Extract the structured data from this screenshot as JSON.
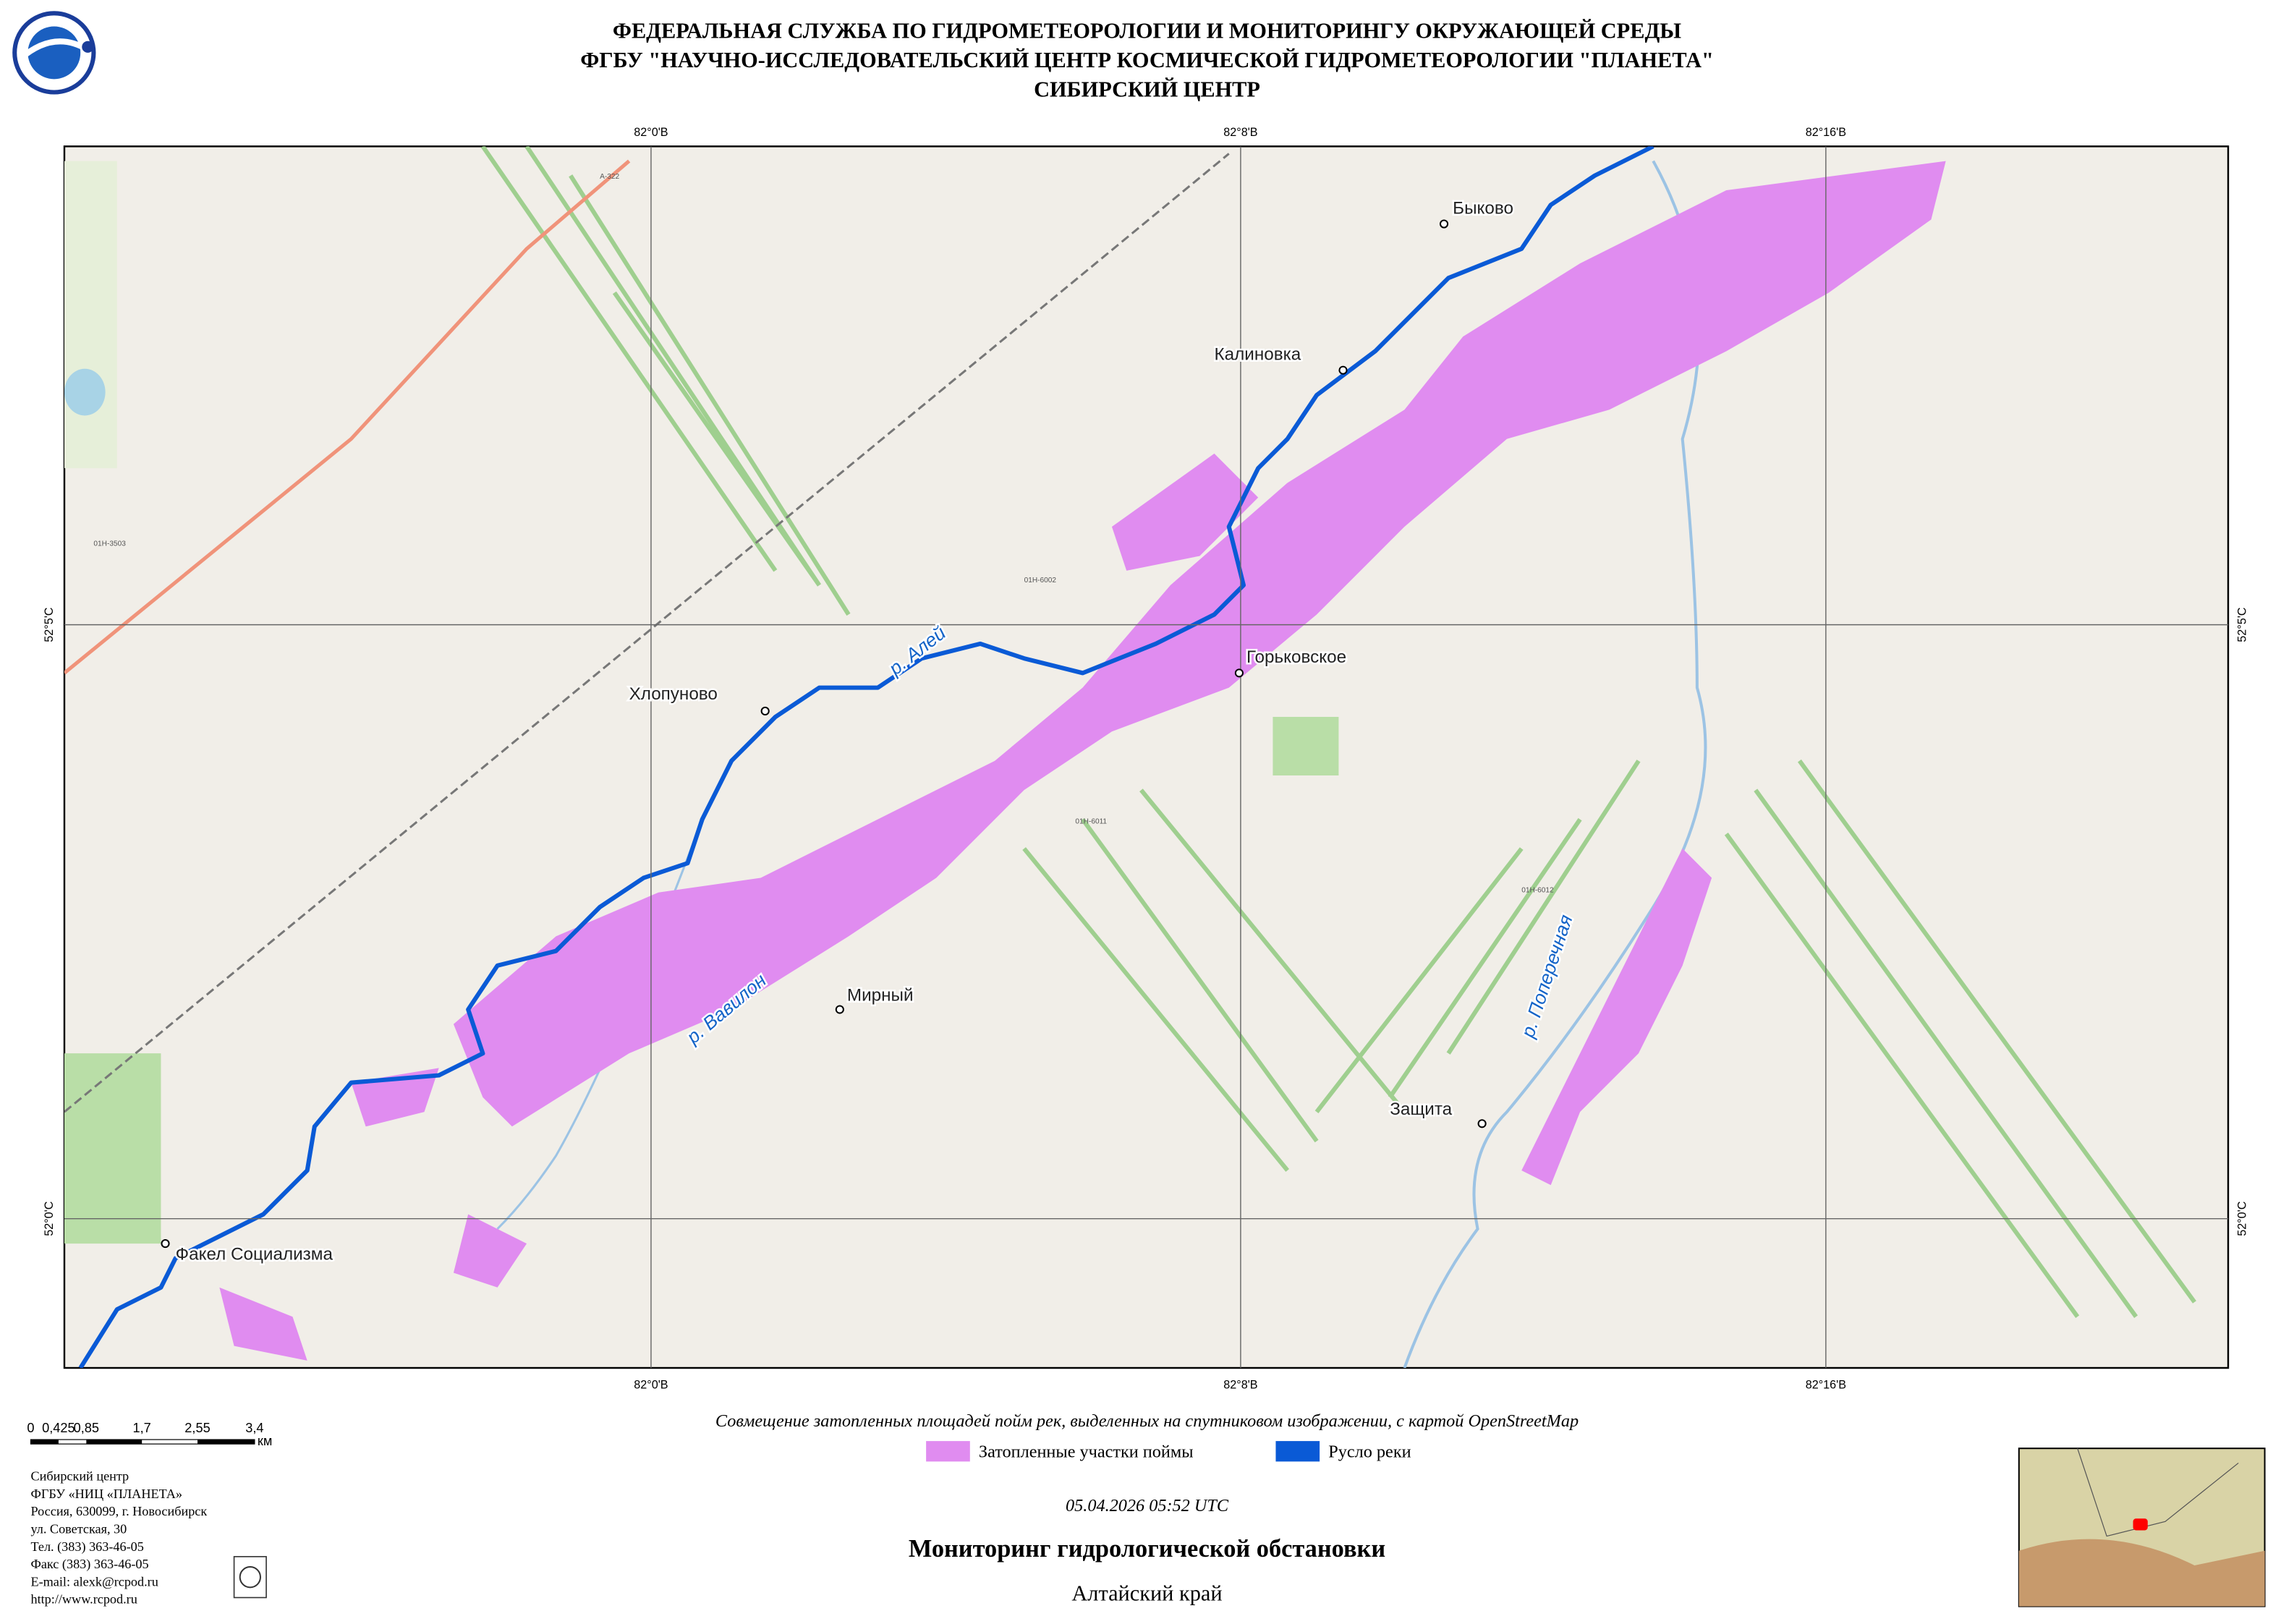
{
  "header": {
    "lines": [
      "ФЕДЕРАЛЬНАЯ СЛУЖБА ПО ГИДРОМЕТЕОРОЛОГИИ И МОНИТОРИНГУ ОКРУЖАЮЩЕЙ СРЕДЫ",
      "ФГБУ \"НАУЧНО-ИССЛЕДОВАТЕЛЬСКИЙ ЦЕНТР КОСМИЧЕСКОЙ ГИДРОМЕТЕОРОЛОГИИ \"ПЛАНЕТА\"",
      "СИБИРСКИЙ ЦЕНТР"
    ]
  },
  "map": {
    "lon_labels": [
      "82°0'В",
      "82°8'В",
      "82°16'В"
    ],
    "lat_labels": [
      "52°5'С",
      "52°0'С"
    ],
    "places": [
      "Быково",
      "Калиновка",
      "Горьковское",
      "Хлопуново",
      "Мирный",
      "Защита",
      "Факел Социализма"
    ],
    "rivers": [
      "р. Алей",
      "р. Вавилон",
      "р. Поперечная"
    ],
    "roads": [
      "А-322",
      "01Н-3503",
      "01Н-6002",
      "01Н-6011",
      "01Н-6012"
    ]
  },
  "scale": {
    "ticks": [
      "0",
      "0,425",
      "0,85",
      "1,7",
      "2,55",
      "3,4"
    ],
    "unit": "км"
  },
  "caption": "Совмещение затопленных площадей пойм рек, выделенных на спутниковом изображении, с картой OpenStreetMap",
  "legend": [
    "Затопленные участки поймы",
    "Русло реки"
  ],
  "contacts": [
    "Сибирский центр",
    "ФГБУ «НИЦ «ПЛАНЕТА»",
    "Россия, 630099, г. Новосибирск",
    "ул. Советская, 30",
    "Тел. (383) 363-46-05",
    "Факс (383) 363-46-05",
    "E-mail: alexk@rcpod.ru",
    "http://www.rcpod.ru"
  ],
  "footer": {
    "date": "05.04.2026  05:52 UTC",
    "title": "Мониторинг гидрологической обстановки",
    "region": "Алтайский край"
  }
}
